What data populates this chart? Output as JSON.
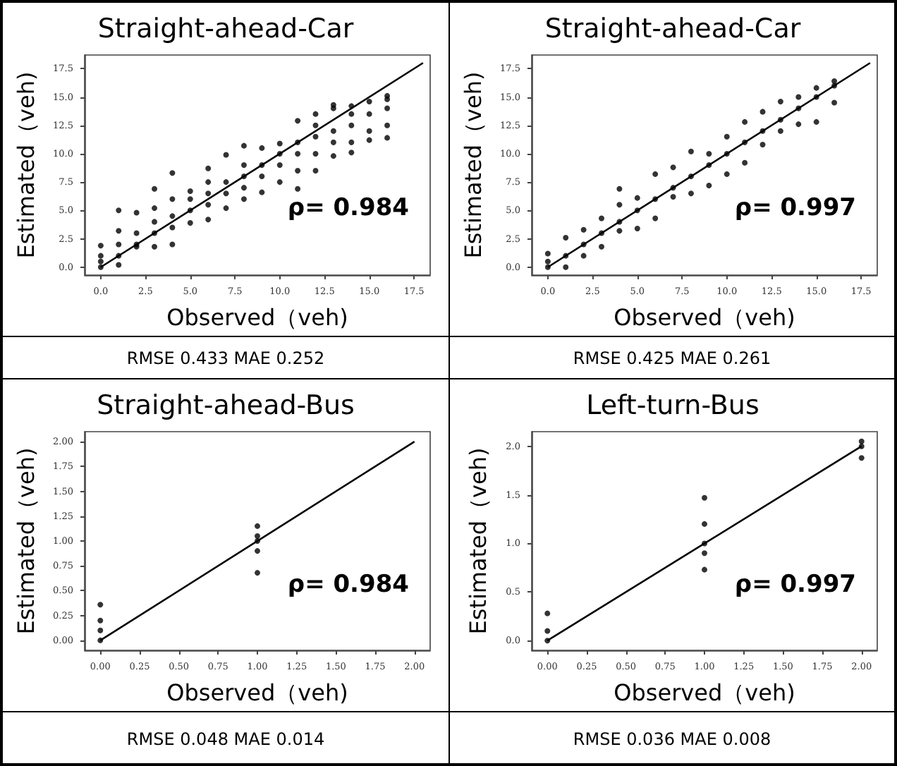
{
  "chart_data": [
    {
      "type": "scatter",
      "title": "Straight-ahead-Car",
      "xlabel": "Observed（veh)",
      "ylabel": "Estimated（veh)",
      "annotations": [
        "ρ= 0.984",
        "RMSE 0.433 MAE 0.252"
      ],
      "xlim": [
        -0.9,
        18.4
      ],
      "ylim": [
        -0.7,
        18.7
      ],
      "xticks": [
        {
          "value": 0,
          "label": "0.0"
        },
        {
          "value": 2.5,
          "label": "2.5"
        },
        {
          "value": 5,
          "label": "5.0"
        },
        {
          "value": 7.5,
          "label": "7.5"
        },
        {
          "value": 10,
          "label": "10.0"
        },
        {
          "value": 12.5,
          "label": "12.5"
        },
        {
          "value": 15,
          "label": "15.0"
        },
        {
          "value": 17.5,
          "label": "17.5"
        }
      ],
      "yticks": [
        {
          "value": 0,
          "label": "0.0"
        },
        {
          "value": 2.5,
          "label": "2.5"
        },
        {
          "value": 5,
          "label": "5.0"
        },
        {
          "value": 7.5,
          "label": "7.5"
        },
        {
          "value": 10,
          "label": "10.0"
        },
        {
          "value": 12.5,
          "label": "12.5"
        },
        {
          "value": 15,
          "label": "15.0"
        },
        {
          "value": 17.5,
          "label": "17.5"
        }
      ],
      "grid": false,
      "series": [
        {
          "type": "scatter",
          "color": "#000000",
          "marker": "circle",
          "x": [
            0,
            0,
            0,
            0,
            1,
            1,
            1,
            1,
            1,
            2,
            2,
            2,
            2,
            3,
            3,
            3,
            3,
            3,
            4,
            4,
            4,
            4,
            4,
            5,
            5,
            5,
            5,
            6,
            6,
            6,
            6,
            6,
            7,
            7,
            7,
            7,
            8,
            8,
            8,
            8,
            8,
            9,
            9,
            9,
            9,
            10,
            10,
            10,
            10,
            11,
            11,
            11,
            11,
            11,
            12,
            12,
            12,
            12,
            12,
            13,
            13,
            13,
            13,
            13,
            14,
            14,
            14,
            14,
            14,
            15,
            15,
            15,
            15,
            16,
            16,
            16,
            16,
            16
          ],
          "values": [
            0,
            1.9,
            0.5,
            1.0,
            0.2,
            5.0,
            1.0,
            2.0,
            3.2,
            1.8,
            4.8,
            2.0,
            3.0,
            1.8,
            6.9,
            3.0,
            4.0,
            5.2,
            2.0,
            8.3,
            3.5,
            4.5,
            6.0,
            3.9,
            6.7,
            5.0,
            6.0,
            4.2,
            8.7,
            5.5,
            6.5,
            7.5,
            5.2,
            9.9,
            6.5,
            7.5,
            6.0,
            10.7,
            7.0,
            8.0,
            9.0,
            6.6,
            10.5,
            8.0,
            9.0,
            7.5,
            10.9,
            9.0,
            10.0,
            6.9,
            12.9,
            8.5,
            10.0,
            11.0,
            8.5,
            13.5,
            10.0,
            11.5,
            12.5,
            9.8,
            14.3,
            11.0,
            12.0,
            14.0,
            10.1,
            14.2,
            11.0,
            12.5,
            13.5,
            11.2,
            14.6,
            12.0,
            13.5,
            11.4,
            15.1,
            12.5,
            14.0,
            14.8
          ]
        },
        {
          "type": "line",
          "color": "#000000",
          "marker": "none",
          "line_style": "solid",
          "x": [
            0,
            18
          ],
          "values": [
            0,
            18
          ]
        }
      ]
    },
    {
      "type": "scatter",
      "title": "Straight-ahead-Car",
      "xlabel": "Observed（veh)",
      "ylabel": "Estimated（veh)",
      "annotations": [
        "ρ= 0.997",
        "RMSE 0.425 MAE 0.261"
      ],
      "xlim": [
        -0.9,
        18.4
      ],
      "ylim": [
        -0.7,
        18.7
      ],
      "xticks": [
        {
          "value": 0,
          "label": "0.0"
        },
        {
          "value": 2.5,
          "label": "2.5"
        },
        {
          "value": 5,
          "label": "5.0"
        },
        {
          "value": 7.5,
          "label": "7.5"
        },
        {
          "value": 10,
          "label": "10.0"
        },
        {
          "value": 12.5,
          "label": "12.5"
        },
        {
          "value": 15,
          "label": "15.0"
        },
        {
          "value": 17.5,
          "label": "17.5"
        }
      ],
      "yticks": [
        {
          "value": 0,
          "label": "0.0"
        },
        {
          "value": 2.5,
          "label": "2.5"
        },
        {
          "value": 5,
          "label": "5.0"
        },
        {
          "value": 7.5,
          "label": "7.5"
        },
        {
          "value": 10,
          "label": "10.0"
        },
        {
          "value": 12.5,
          "label": "12.5"
        },
        {
          "value": 15,
          "label": "15.0"
        },
        {
          "value": 17.5,
          "label": "17.5"
        }
      ],
      "grid": false,
      "series": [
        {
          "type": "scatter",
          "color": "#000000",
          "marker": "circle",
          "x": [
            0,
            0,
            0,
            1,
            1,
            1,
            2,
            2,
            2,
            3,
            3,
            3,
            4,
            4,
            4,
            4,
            5,
            5,
            5,
            6,
            6,
            6,
            7,
            7,
            7,
            8,
            8,
            8,
            9,
            9,
            9,
            10,
            10,
            10,
            11,
            11,
            11,
            12,
            12,
            12,
            13,
            13,
            13,
            14,
            14,
            14,
            15,
            15,
            15,
            16,
            16,
            16
          ],
          "values": [
            0,
            1.2,
            0.5,
            0,
            2.6,
            1.0,
            1.0,
            3.3,
            2.0,
            1.8,
            4.3,
            3.0,
            3.2,
            6.9,
            4.0,
            5.5,
            3.4,
            6.1,
            5.0,
            4.3,
            8.2,
            6.0,
            6.2,
            8.8,
            7.0,
            6.5,
            10.2,
            8.0,
            7.2,
            10.0,
            9.0,
            8.2,
            11.5,
            10.0,
            9.2,
            12.8,
            11.0,
            10.8,
            13.7,
            12.0,
            12.0,
            14.6,
            13.0,
            12.6,
            15.0,
            14.0,
            12.8,
            15.8,
            15.0,
            14.5,
            16.4,
            16.0
          ]
        },
        {
          "type": "line",
          "color": "#000000",
          "marker": "none",
          "line_style": "solid",
          "x": [
            0,
            18
          ],
          "values": [
            0,
            18
          ]
        }
      ]
    },
    {
      "type": "scatter",
      "title": "Straight-ahead-Bus",
      "xlabel": "Observed（veh)",
      "ylabel": "Estimated（veh)",
      "annotations": [
        "ρ= 0.984",
        "RMSE 0.048 MAE 0.014"
      ],
      "xlim": [
        -0.1,
        2.1
      ],
      "ylim": [
        -0.1,
        2.1
      ],
      "xticks": [
        {
          "value": 0,
          "label": "0.00"
        },
        {
          "value": 0.25,
          "label": "0.25"
        },
        {
          "value": 0.5,
          "label": "0.50"
        },
        {
          "value": 0.75,
          "label": "0.75"
        },
        {
          "value": 1,
          "label": "1.00"
        },
        {
          "value": 1.25,
          "label": "1.25"
        },
        {
          "value": 1.5,
          "label": "1.50"
        },
        {
          "value": 1.75,
          "label": "1.75"
        },
        {
          "value": 2,
          "label": "2.00"
        }
      ],
      "yticks": [
        {
          "value": 0,
          "label": "0.00"
        },
        {
          "value": 0.25,
          "label": "0.25"
        },
        {
          "value": 0.5,
          "label": "0.50"
        },
        {
          "value": 0.75,
          "label": "0.75"
        },
        {
          "value": 1,
          "label": "1.00"
        },
        {
          "value": 1.25,
          "label": "1.25"
        },
        {
          "value": 1.5,
          "label": "1.50"
        },
        {
          "value": 1.75,
          "label": "1.75"
        },
        {
          "value": 2,
          "label": "2.00"
        }
      ],
      "grid": false,
      "series": [
        {
          "type": "scatter",
          "color": "#000000",
          "marker": "circle",
          "x": [
            0,
            0,
            0,
            0,
            1,
            1,
            1,
            1,
            1
          ],
          "values": [
            0,
            0.36,
            0.1,
            0.2,
            0.68,
            1.15,
            0.9,
            1.0,
            1.05
          ]
        },
        {
          "type": "line",
          "color": "#000000",
          "marker": "none",
          "line_style": "solid",
          "x": [
            0,
            2
          ],
          "values": [
            0,
            2
          ]
        }
      ]
    },
    {
      "type": "scatter",
      "title": "Left-turn-Bus",
      "xlabel": "Observed（veh)",
      "ylabel": "Estimated（veh)",
      "annotations": [
        "ρ= 0.997",
        "RMSE 0.036 MAE 0.008"
      ],
      "xlim": [
        -0.1,
        2.1
      ],
      "ylim": [
        -0.1,
        2.15
      ],
      "xticks": [
        {
          "value": 0,
          "label": "0.00"
        },
        {
          "value": 0.25,
          "label": "0.25"
        },
        {
          "value": 0.5,
          "label": "0.50"
        },
        {
          "value": 0.75,
          "label": "0.75"
        },
        {
          "value": 1,
          "label": "1.00"
        },
        {
          "value": 1.25,
          "label": "1.25"
        },
        {
          "value": 1.5,
          "label": "1.50"
        },
        {
          "value": 1.75,
          "label": "1.75"
        },
        {
          "value": 2,
          "label": "2.00"
        }
      ],
      "yticks": [
        {
          "value": 0,
          "label": "0.0"
        },
        {
          "value": 0.5,
          "label": "0.5"
        },
        {
          "value": 1,
          "label": "1.0"
        },
        {
          "value": 1.5,
          "label": "1.5"
        },
        {
          "value": 2,
          "label": "2.0"
        }
      ],
      "grid": false,
      "series": [
        {
          "type": "scatter",
          "color": "#000000",
          "marker": "circle",
          "x": [
            0,
            0,
            0,
            1,
            1,
            1,
            1,
            1,
            2,
            2,
            2
          ],
          "values": [
            0,
            0.28,
            0.1,
            0.73,
            1.47,
            0.9,
            1.0,
            1.2,
            1.88,
            2.05,
            2.0
          ]
        },
        {
          "type": "line",
          "color": "#000000",
          "marker": "none",
          "line_style": "solid",
          "x": [
            0,
            2
          ],
          "values": [
            0,
            2
          ]
        }
      ]
    }
  ]
}
